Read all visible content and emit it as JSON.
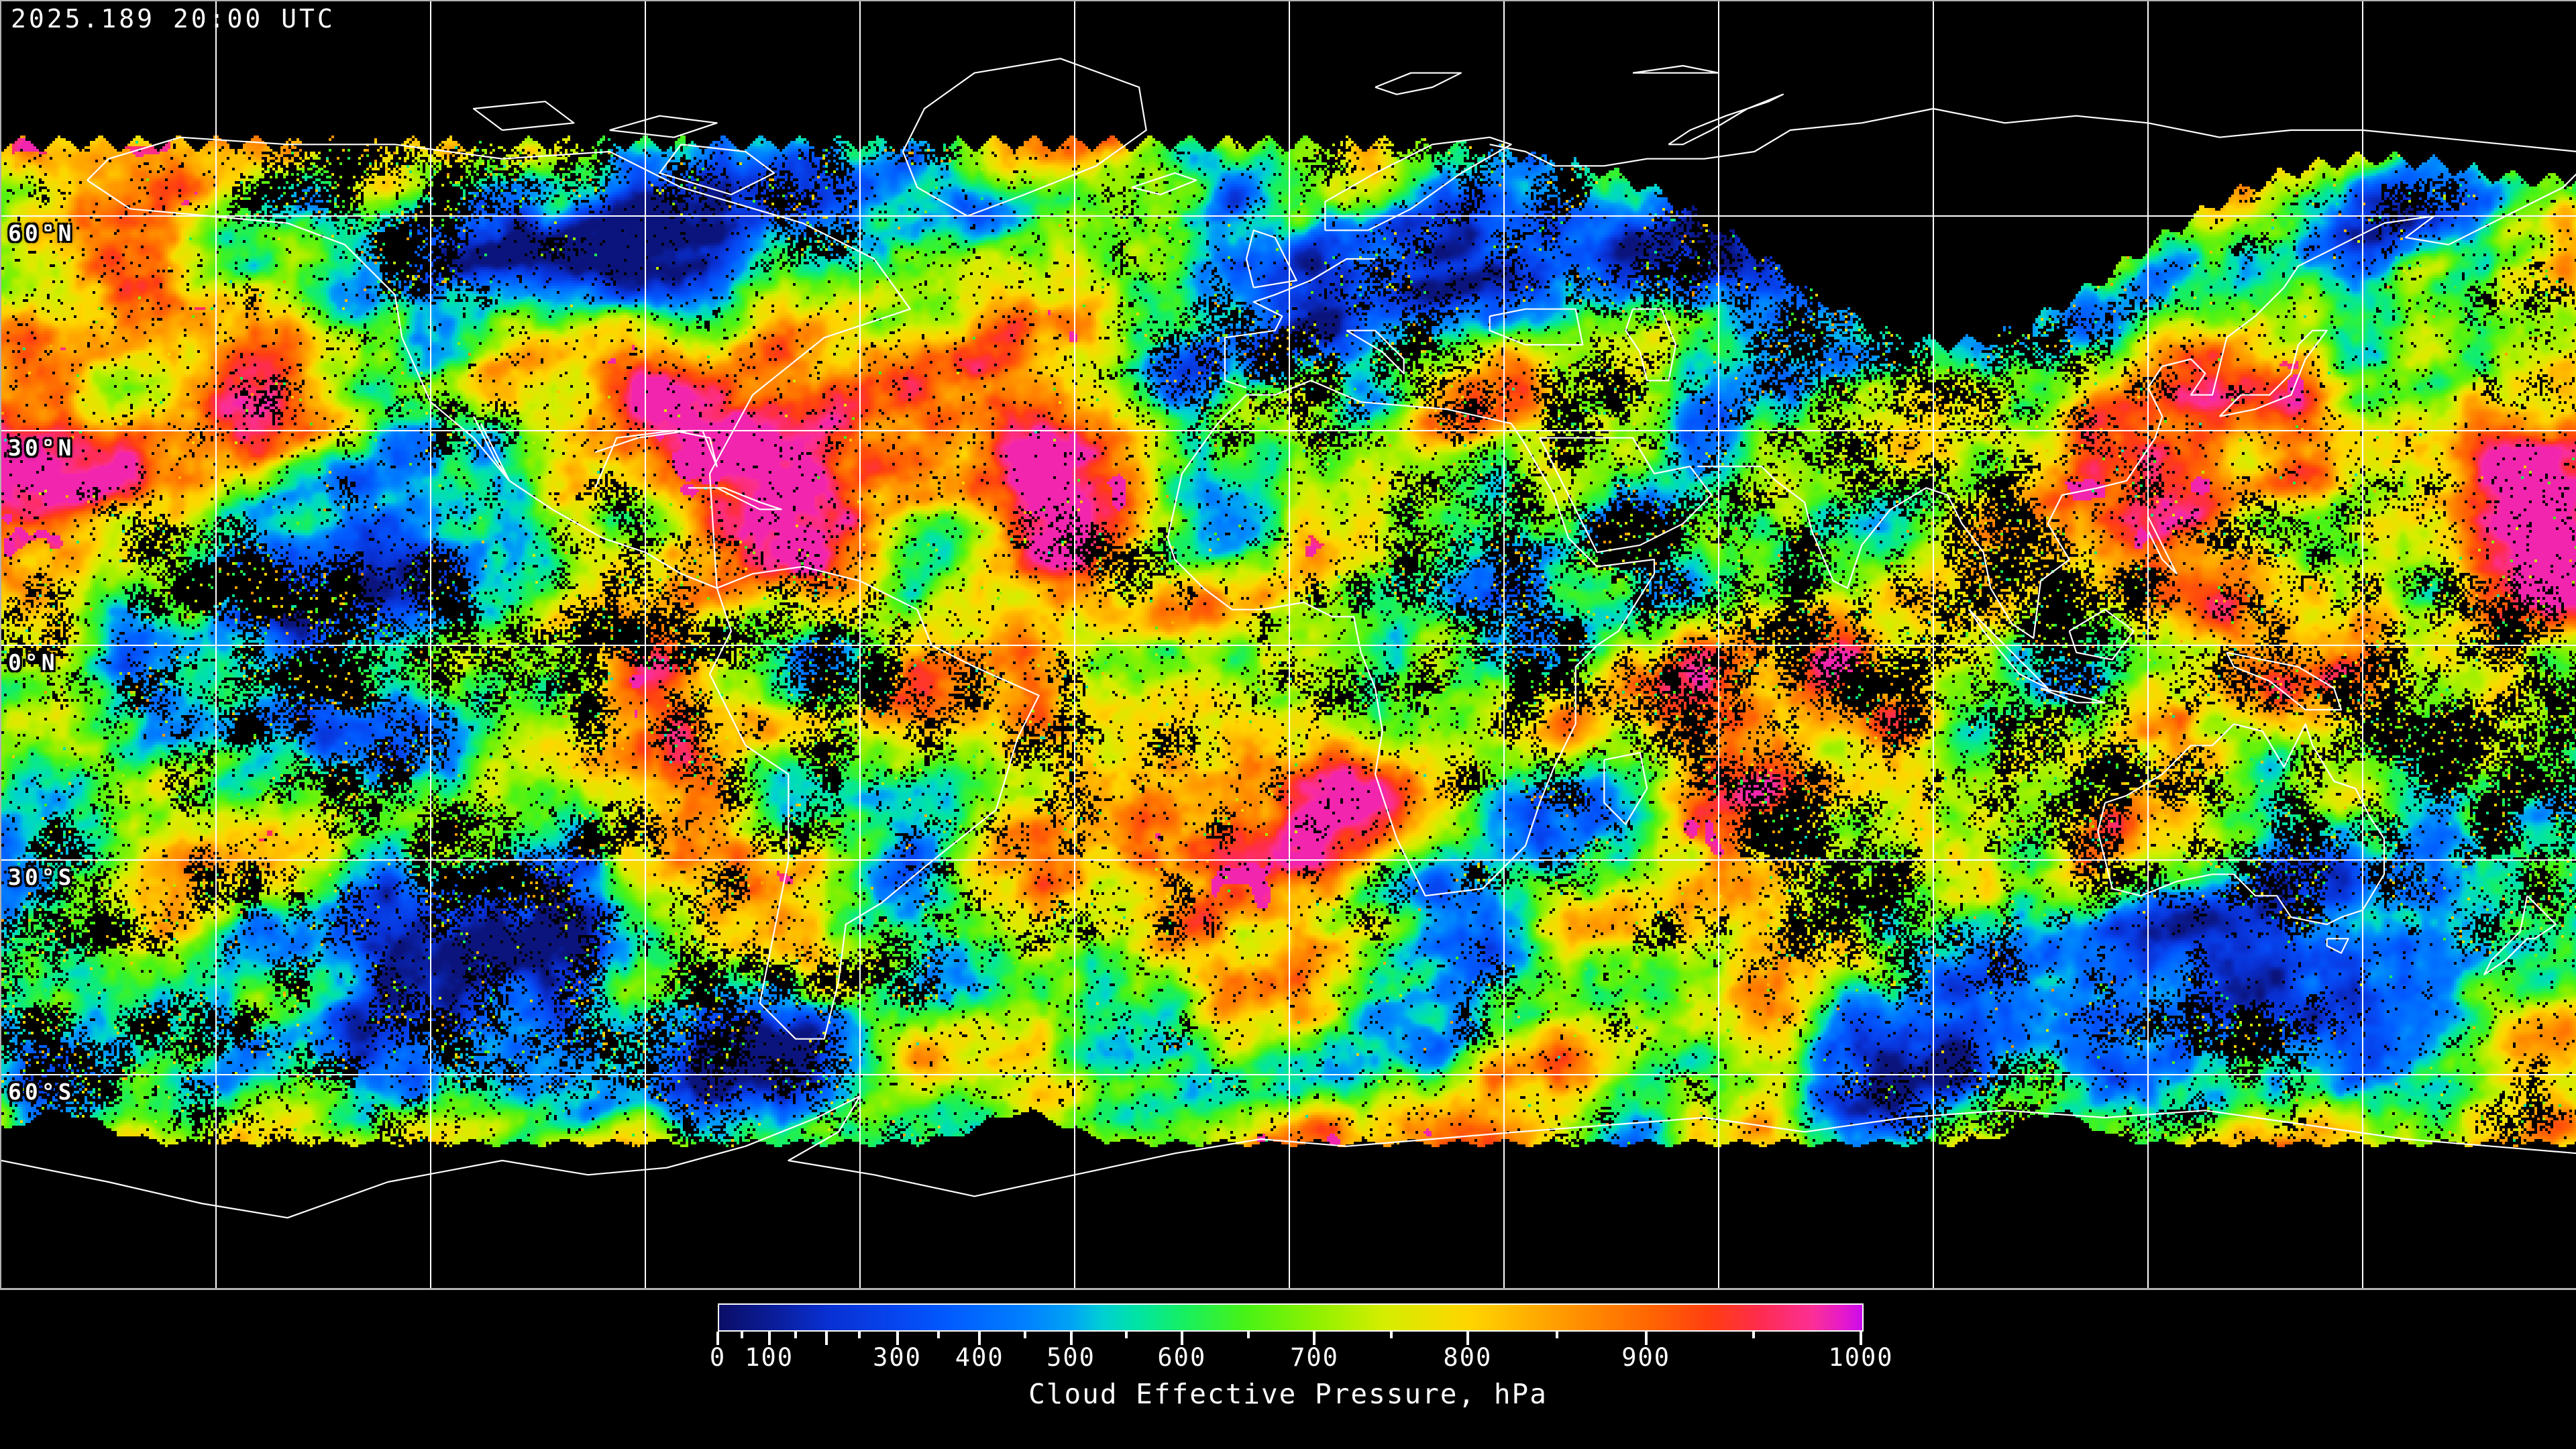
{
  "header": {
    "timestamp": "2025.189 20:00 UTC"
  },
  "map": {
    "projection": "equirectangular",
    "background_color": "#000000",
    "frame_color": "#b2b2b2",
    "grid_color": "#ffffff",
    "coastline_color": "#ffffff",
    "latitude_labels": [
      {
        "text": "60°N",
        "lat": 60
      },
      {
        "text": "30°N",
        "lat": 30
      },
      {
        "text": "0°N",
        "lat": 0
      },
      {
        "text": "30°S",
        "lat": -30
      },
      {
        "text": "60°S",
        "lat": -60
      }
    ],
    "grid": {
      "lat_spacing_deg": 30,
      "lon_spacing_deg": 30
    }
  },
  "colorbar": {
    "title": "Cloud Effective Pressure, hPa",
    "units": "hPa",
    "min": 0,
    "max": 1000,
    "labeled_ticks": [
      0,
      100,
      300,
      400,
      500,
      600,
      700,
      800,
      900,
      1000
    ],
    "minor_tick_step": 50,
    "border_color": "#ffffff",
    "text_color": "#ffffff"
  },
  "chart_data": {
    "type": "heatmap",
    "title": "Cloud Effective Pressure, hPa",
    "variable": "Cloud Effective Pressure",
    "units": "hPa",
    "timestamp": "2025.189 20:00 UTC",
    "value_range": [
      0,
      1000
    ],
    "colorbar_labeled_ticks": [
      0,
      100,
      300,
      400,
      500,
      600,
      700,
      800,
      900,
      1000
    ],
    "colorbar_minor_tick_step": 50,
    "nonlinear_scale": {
      "values": [
        0,
        50,
        100,
        150,
        200,
        250,
        300,
        400,
        500,
        600,
        700,
        800,
        900,
        1000
      ],
      "fractions": [
        0,
        0.021,
        0.045,
        0.068,
        0.095,
        0.124,
        0.157,
        0.229,
        0.309,
        0.406,
        0.522,
        0.656,
        0.812,
        1.0
      ]
    },
    "palette": [
      {
        "pos": 0.0,
        "color": "#0b0e68"
      },
      {
        "pos": 0.045,
        "color": "#0a1c96"
      },
      {
        "pos": 0.095,
        "color": "#0930d2"
      },
      {
        "pos": 0.157,
        "color": "#0646f0"
      },
      {
        "pos": 0.2,
        "color": "#015aff"
      },
      {
        "pos": 0.268,
        "color": "#0080ff"
      },
      {
        "pos": 0.309,
        "color": "#00a4f4"
      },
      {
        "pos": 0.335,
        "color": "#00cfd4"
      },
      {
        "pos": 0.365,
        "color": "#00e3a6"
      },
      {
        "pos": 0.406,
        "color": "#16ef62"
      },
      {
        "pos": 0.46,
        "color": "#47f316"
      },
      {
        "pos": 0.522,
        "color": "#8ff000"
      },
      {
        "pos": 0.58,
        "color": "#d3ee00"
      },
      {
        "pos": 0.656,
        "color": "#ffd500"
      },
      {
        "pos": 0.75,
        "color": "#ff9100"
      },
      {
        "pos": 0.812,
        "color": "#ff6702"
      },
      {
        "pos": 0.868,
        "color": "#ff3d12"
      },
      {
        "pos": 0.91,
        "color": "#fe2c4e"
      },
      {
        "pos": 0.957,
        "color": "#fb2f96"
      },
      {
        "pos": 0.985,
        "color": "#e318cf"
      },
      {
        "pos": 1.0,
        "color": "#c90ceb"
      }
    ]
  }
}
